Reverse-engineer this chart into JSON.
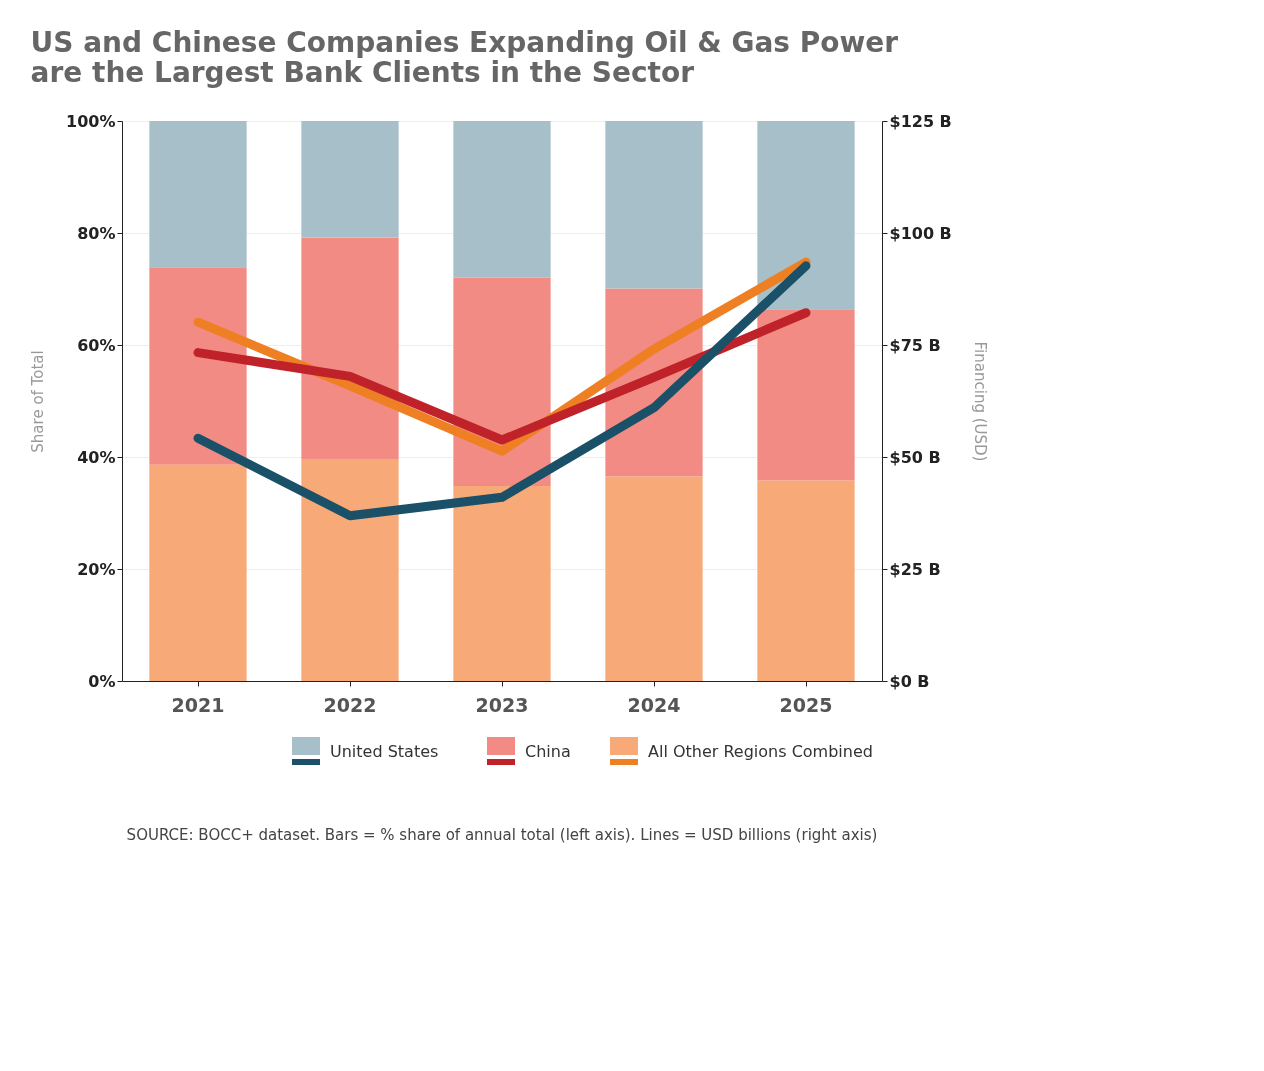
{
  "chart_data": {
    "type": "bar",
    "title": "US and Chinese Companies Expanding Oil & Gas Power are the Largest Bank Clients in the Sector",
    "categories": [
      "2021",
      "2022",
      "2023",
      "2024",
      "2025"
    ],
    "stacked": true,
    "series": [
      {
        "name": "All Other Regions Combined",
        "color": "#f7a977",
        "values": [
          38.6,
          39.5,
          34.8,
          36.5,
          35.8
        ]
      },
      {
        "name": "China",
        "color": "#f38b85",
        "values": [
          35.3,
          39.7,
          37.2,
          33.6,
          30.6
        ]
      },
      {
        "name": "United States",
        "color": "#a7bfc8",
        "values": [
          26.1,
          20.8,
          28.0,
          29.9,
          33.6
        ]
      },
      {
        "type": "line",
        "axis": "y2",
        "color": "#ee7f23",
        "values": [
          80.1,
          65.9,
          51.3,
          74.1,
          93.5
        ]
      },
      {
        "type": "line",
        "axis": "y2",
        "color": "#c0222a",
        "values": [
          73.3,
          68.0,
          53.8,
          67.8,
          82.2
        ]
      },
      {
        "type": "line",
        "axis": "y2",
        "color": "#1a5068",
        "values": [
          54.2,
          36.9,
          41.0,
          61.0,
          92.7
        ]
      }
    ],
    "ylabel": "Share of Total",
    "y2label": "Financing (USD)",
    "ylim": [
      0,
      100
    ],
    "yticks": [
      {
        "value": 0,
        "label": "0%"
      },
      {
        "value": 20,
        "label": "20%"
      },
      {
        "value": 40,
        "label": "40%"
      },
      {
        "value": 60,
        "label": "60%"
      },
      {
        "value": 80,
        "label": "80%"
      },
      {
        "value": 100,
        "label": "100%"
      }
    ],
    "y2lim": [
      0,
      125
    ],
    "y2ticks": [
      {
        "value": 0,
        "label": "$0 B"
      },
      {
        "value": 25,
        "label": "$25 B"
      },
      {
        "value": 50,
        "label": "$50 B"
      },
      {
        "value": 75,
        "label": "$75 B"
      },
      {
        "value": 100,
        "label": "$100 B"
      },
      {
        "value": 125,
        "label": "$125 B"
      }
    ],
    "grid": "y",
    "legend": "bottom",
    "annotations": [
      "SOURCE: BOCC+ dataset. Bars = % share of annual total (left axis). Lines = USD billions (right axis)"
    ]
  }
}
